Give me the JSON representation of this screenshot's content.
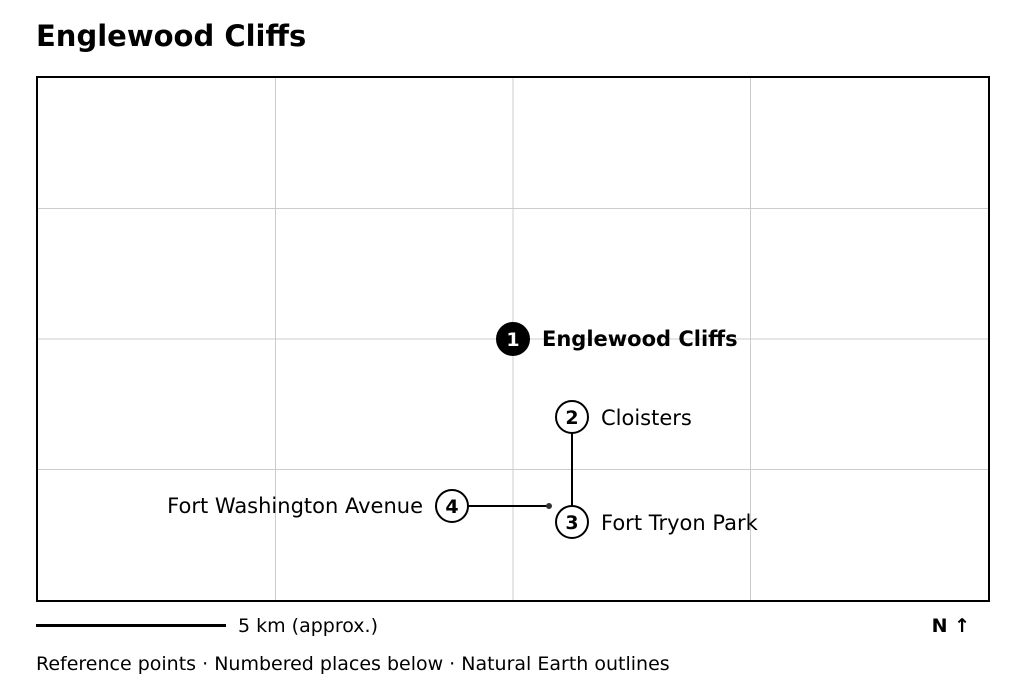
{
  "title": "Englewood Cliffs",
  "places": [
    {
      "num": "1",
      "name": "Englewood Cliffs",
      "primary": true
    },
    {
      "num": "2",
      "name": "Cloisters",
      "primary": false
    },
    {
      "num": "3",
      "name": "Fort Tryon Park",
      "primary": false
    },
    {
      "num": "4",
      "name": "Fort Washington Avenue",
      "primary": false
    }
  ],
  "scale": {
    "label": "5 km (approx.)"
  },
  "north": "N ↑",
  "footer": "Reference points · Numbered places below · Natural Earth outlines",
  "colors": {
    "primary_marker": "#000000",
    "secondary_marker": "#ffffff",
    "grid": "#cccccc",
    "frame": "#000000"
  }
}
